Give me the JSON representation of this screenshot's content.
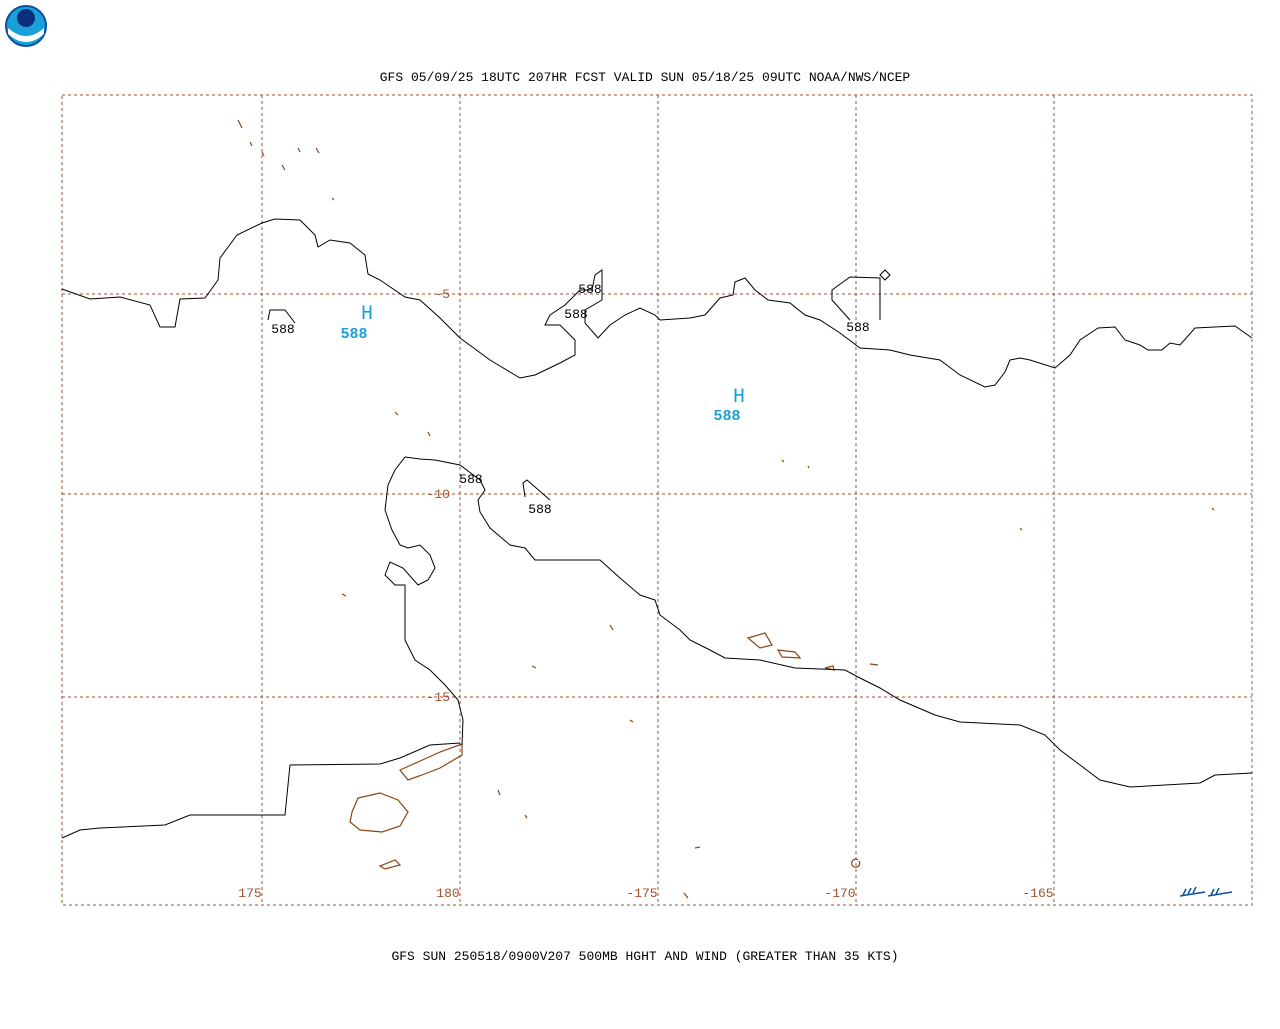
{
  "header": {
    "title": "GFS 05/09/25 18UTC 207HR FCST VALID SUN 05/18/25 09UTC NOAA/NWS/NCEP"
  },
  "map": {
    "lat_labels": [
      "-5",
      "-10",
      "-15"
    ],
    "lon_labels": [
      "175",
      "180",
      "-175",
      "-170",
      "-165"
    ],
    "contour_labels": [
      "588",
      "588",
      "588",
      "588",
      "588",
      "588"
    ],
    "highs": [
      {
        "symbol": "H",
        "value": "588"
      },
      {
        "symbol": "H",
        "value": "588"
      }
    ]
  },
  "footer": {
    "caption": "GFS SUN 250518/0900V207 500MB HGHT AND WIND (GREATER THAN 35 KTS)"
  }
}
